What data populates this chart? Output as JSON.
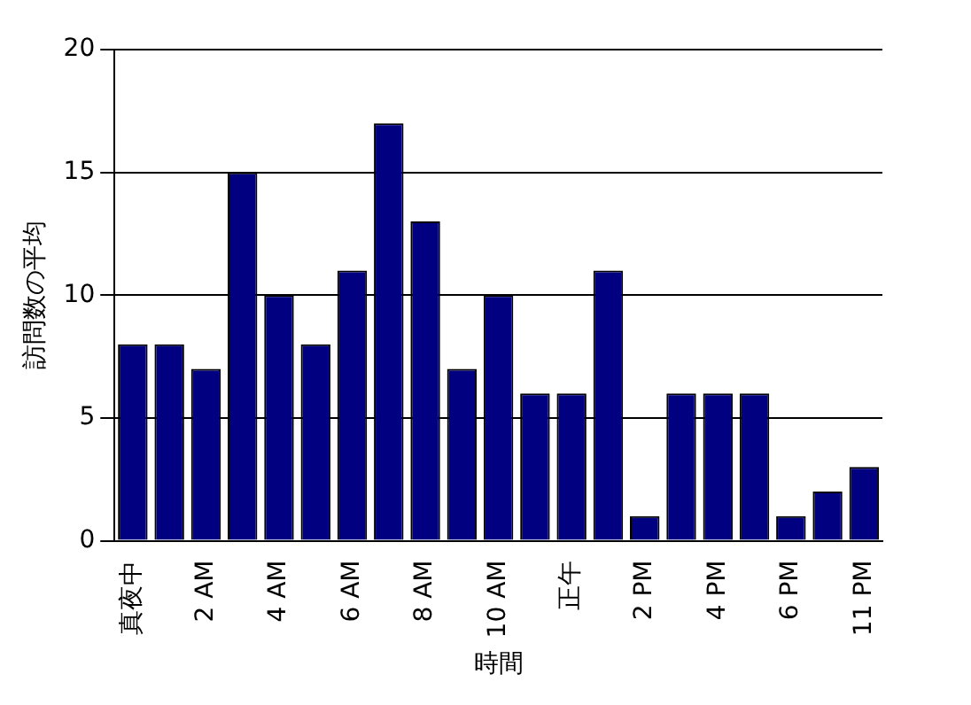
{
  "chart_data": {
    "type": "bar",
    "xlabel": "時間",
    "ylabel": "訪問数の平均",
    "categories": [
      "真夜中",
      null,
      "2 AM",
      null,
      "4 AM",
      null,
      "6 AM",
      null,
      "8 AM",
      null,
      "10 AM",
      null,
      "正午",
      null,
      "2 PM",
      null,
      "4 PM",
      null,
      "6 PM",
      null,
      "11 PM"
    ],
    "values": [
      8,
      8,
      7,
      15,
      10,
      8,
      11,
      17,
      13,
      7,
      10,
      6,
      6,
      11,
      1,
      6,
      6,
      6,
      1,
      2,
      3
    ],
    "color": "#000080",
    "ylim": [
      0,
      20
    ],
    "yticks": [
      0,
      5,
      10,
      15,
      20
    ],
    "grid": "y",
    "legend": false
  }
}
